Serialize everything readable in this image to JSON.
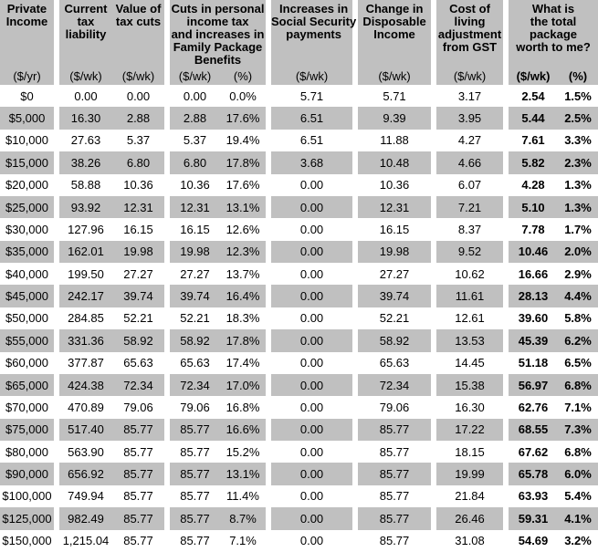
{
  "colors": {
    "band": "#c0c0c0",
    "text": "#000000",
    "background": "#ffffff"
  },
  "header": {
    "private_income": {
      "title": "Private\nIncome",
      "unit": "($/yr)"
    },
    "current_tax": {
      "title": "Current\ntax\nliability",
      "unit": "($/wk)"
    },
    "value_cuts": {
      "title": "Value of\ntax cuts",
      "unit": "($/wk)"
    },
    "family_package": {
      "title": "Cuts in personal\nincome tax\nand increases in\nFamily Package\nBenefits",
      "unit_wk": "($/wk)",
      "unit_pct": "(%)"
    },
    "social_security": {
      "title": "Increases in\nSocial Security\npayments",
      "unit": "($/wk)"
    },
    "disposable": {
      "title": "Change in\nDisposable\nIncome",
      "unit": "($/wk)"
    },
    "gst": {
      "title": "Cost of\nliving\nadjustment\nfrom GST",
      "unit": "($/wk)"
    },
    "total": {
      "title": "What is\nthe total\npackage\nworth to me?",
      "unit_wk": "($/wk)",
      "unit_pct": "(%)"
    }
  },
  "chart_data": {
    "type": "table",
    "columns": [
      "Private Income ($/yr)",
      "Current tax liability ($/wk)",
      "Value of tax cuts ($/wk)",
      "Cuts in personal income tax and increases in Family Package Benefits ($/wk)",
      "Cuts in personal income tax and increases in Family Package Benefits (%)",
      "Increases in Social Security payments ($/wk)",
      "Change in Disposable Income ($/wk)",
      "Cost of living adjustment from GST ($/wk)",
      "What is the total package worth to me? ($/wk)",
      "What is the total package worth to me? (%)"
    ],
    "column_keys": [
      "private-income",
      "current-tax-liability",
      "value-of-tax-cuts",
      "family-package-wk",
      "family-package-pct",
      "social-security-wk",
      "disposable-income-wk",
      "gst-adjustment-wk",
      "total-package-wk",
      "total-package-pct"
    ],
    "rows": [
      [
        "$0",
        "0.00",
        "0.00",
        "0.00",
        "0.0%",
        "5.71",
        "5.71",
        "3.17",
        "2.54",
        "1.5%"
      ],
      [
        "$5,000",
        "16.30",
        "2.88",
        "2.88",
        "17.6%",
        "6.51",
        "9.39",
        "3.95",
        "5.44",
        "2.5%"
      ],
      [
        "$10,000",
        "27.63",
        "5.37",
        "5.37",
        "19.4%",
        "6.51",
        "11.88",
        "4.27",
        "7.61",
        "3.3%"
      ],
      [
        "$15,000",
        "38.26",
        "6.80",
        "6.80",
        "17.8%",
        "3.68",
        "10.48",
        "4.66",
        "5.82",
        "2.3%"
      ],
      [
        "$20,000",
        "58.88",
        "10.36",
        "10.36",
        "17.6%",
        "0.00",
        "10.36",
        "6.07",
        "4.28",
        "1.3%"
      ],
      [
        "$25,000",
        "93.92",
        "12.31",
        "12.31",
        "13.1%",
        "0.00",
        "12.31",
        "7.21",
        "5.10",
        "1.3%"
      ],
      [
        "$30,000",
        "127.96",
        "16.15",
        "16.15",
        "12.6%",
        "0.00",
        "16.15",
        "8.37",
        "7.78",
        "1.7%"
      ],
      [
        "$35,000",
        "162.01",
        "19.98",
        "19.98",
        "12.3%",
        "0.00",
        "19.98",
        "9.52",
        "10.46",
        "2.0%"
      ],
      [
        "$40,000",
        "199.50",
        "27.27",
        "27.27",
        "13.7%",
        "0.00",
        "27.27",
        "10.62",
        "16.66",
        "2.9%"
      ],
      [
        "$45,000",
        "242.17",
        "39.74",
        "39.74",
        "16.4%",
        "0.00",
        "39.74",
        "11.61",
        "28.13",
        "4.4%"
      ],
      [
        "$50,000",
        "284.85",
        "52.21",
        "52.21",
        "18.3%",
        "0.00",
        "52.21",
        "12.61",
        "39.60",
        "5.8%"
      ],
      [
        "$55,000",
        "331.36",
        "58.92",
        "58.92",
        "17.8%",
        "0.00",
        "58.92",
        "13.53",
        "45.39",
        "6.2%"
      ],
      [
        "$60,000",
        "377.87",
        "65.63",
        "65.63",
        "17.4%",
        "0.00",
        "65.63",
        "14.45",
        "51.18",
        "6.5%"
      ],
      [
        "$65,000",
        "424.38",
        "72.34",
        "72.34",
        "17.0%",
        "0.00",
        "72.34",
        "15.38",
        "56.97",
        "6.8%"
      ],
      [
        "$70,000",
        "470.89",
        "79.06",
        "79.06",
        "16.8%",
        "0.00",
        "79.06",
        "16.30",
        "62.76",
        "7.1%"
      ],
      [
        "$75,000",
        "517.40",
        "85.77",
        "85.77",
        "16.6%",
        "0.00",
        "85.77",
        "17.22",
        "68.55",
        "7.3%"
      ],
      [
        "$80,000",
        "563.90",
        "85.77",
        "85.77",
        "15.2%",
        "0.00",
        "85.77",
        "18.15",
        "67.62",
        "6.8%"
      ],
      [
        "$90,000",
        "656.92",
        "85.77",
        "85.77",
        "13.1%",
        "0.00",
        "85.77",
        "19.99",
        "65.78",
        "6.0%"
      ],
      [
        "$100,000",
        "749.94",
        "85.77",
        "85.77",
        "11.4%",
        "0.00",
        "85.77",
        "21.84",
        "63.93",
        "5.4%"
      ],
      [
        "$125,000",
        "982.49",
        "85.77",
        "85.77",
        "8.7%",
        "0.00",
        "85.77",
        "26.46",
        "59.31",
        "4.1%"
      ],
      [
        "$150,000",
        "1,215.04",
        "85.77",
        "85.77",
        "7.1%",
        "0.00",
        "85.77",
        "31.08",
        "54.69",
        "3.2%"
      ]
    ]
  }
}
